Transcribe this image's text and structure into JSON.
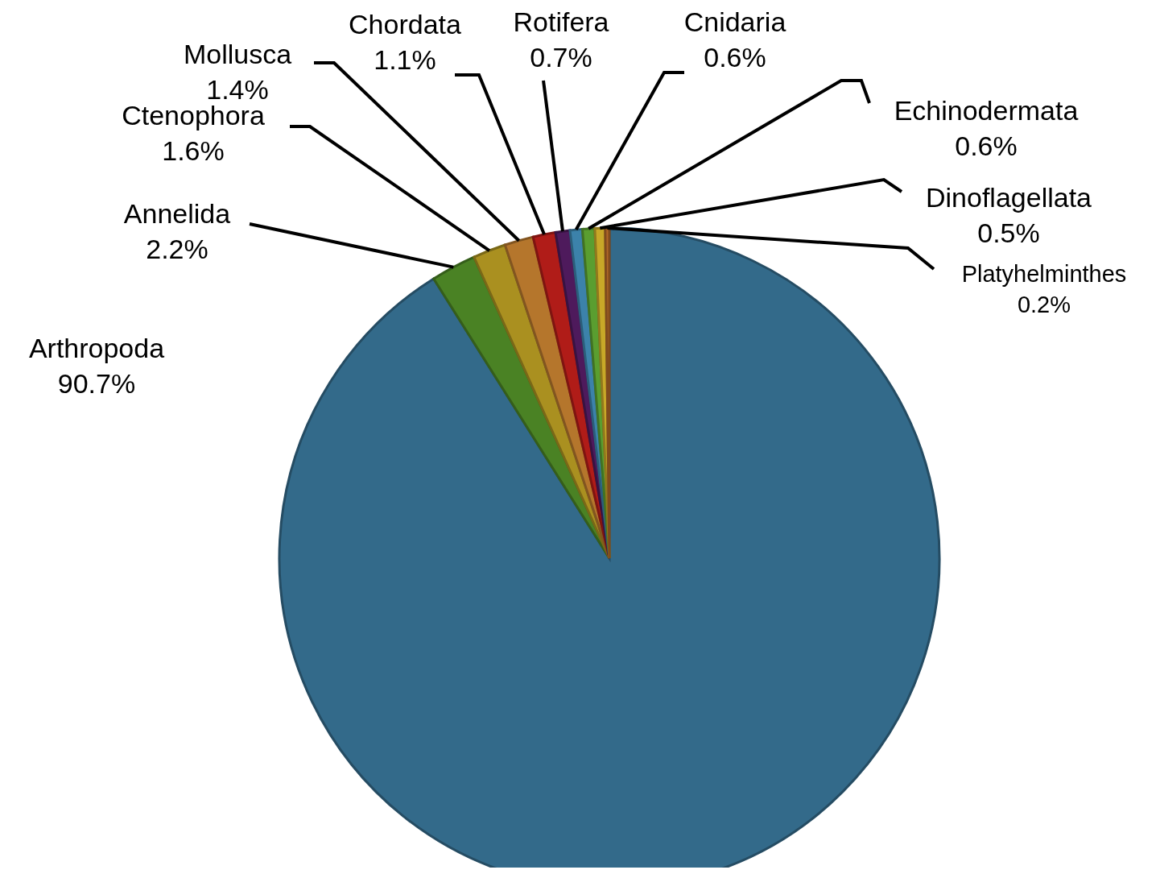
{
  "chart_data": {
    "type": "pie",
    "categories": [
      "Arthropoda",
      "Annelida",
      "Ctenophora",
      "Mollusca",
      "Chordata",
      "Rotifera",
      "Cnidaria",
      "Echinodermata",
      "Dinoflagellata",
      "Platyhelminthes"
    ],
    "values": [
      90.7,
      2.2,
      1.6,
      1.4,
      1.1,
      0.7,
      0.6,
      0.6,
      0.5,
      0.2
    ],
    "value_labels": [
      "90.7%",
      "2.2%",
      "1.6%",
      "1.4%",
      "1.1%",
      "0.7%",
      "0.6%",
      "0.6%",
      "0.5%",
      "0.2%"
    ],
    "colors": [
      "#336a8a",
      "#4a8224",
      "#aa9020",
      "#b5762c",
      "#b01c18",
      "#4e1a5c",
      "#3c82aa",
      "#5a9e30",
      "#c8a828",
      "#b06828"
    ]
  }
}
